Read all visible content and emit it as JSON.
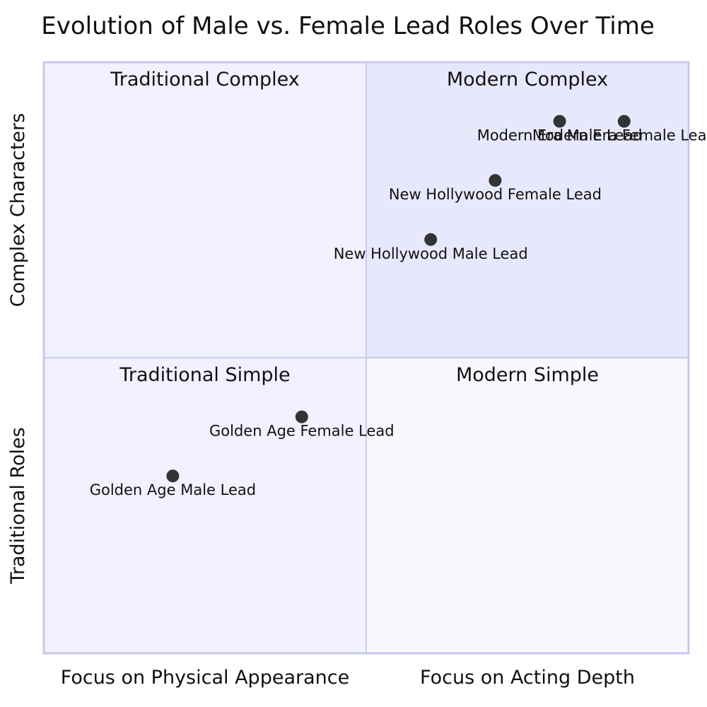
{
  "chart_data": {
    "type": "scatter",
    "title": "Evolution of Male vs. Female Lead Roles Over Time",
    "x_axis": {
      "left_label": "Focus on Physical Appearance",
      "right_label": "Focus on Acting Depth",
      "range": [
        0,
        1
      ]
    },
    "y_axis": {
      "bottom_label": "Traditional Roles",
      "top_label": "Complex Characters",
      "range": [
        0,
        1
      ]
    },
    "quadrants": {
      "top_left": "Traditional Complex",
      "top_right": "Modern Complex",
      "bottom_left": "Traditional Simple",
      "bottom_right": "Modern Simple"
    },
    "points": [
      {
        "label": "Golden Age Male Lead",
        "x": 0.2,
        "y": 0.3
      },
      {
        "label": "Golden Age Female Lead",
        "x": 0.4,
        "y": 0.4
      },
      {
        "label": "New Hollywood Male Lead",
        "x": 0.6,
        "y": 0.7
      },
      {
        "label": "New Hollywood Female Lead",
        "x": 0.7,
        "y": 0.8
      },
      {
        "label": "Modern Era Male Lead",
        "x": 0.8,
        "y": 0.9
      },
      {
        "label": "Modern Era Female Lead",
        "x": 0.9,
        "y": 0.9
      }
    ],
    "colors": {
      "quadrant_top_left": "#f1f1ff",
      "quadrant_top_right": "#e8e8fc",
      "quadrant_bottom_left": "#f1f1ff",
      "quadrant_bottom_right": "#f8f8ff",
      "border": "#c8c8ec",
      "point": "#333333"
    }
  }
}
